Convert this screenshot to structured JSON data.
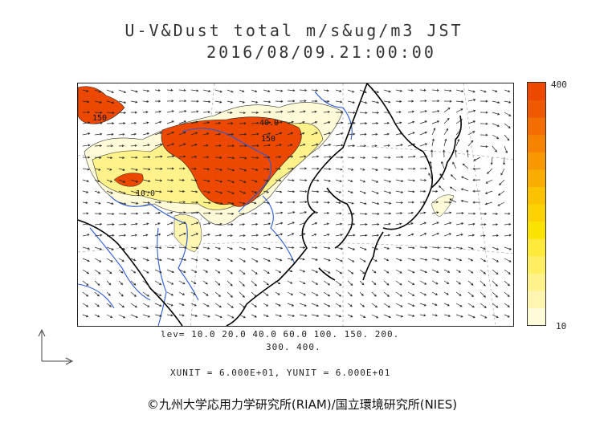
{
  "title": {
    "line1": "U-V&Dust total m/s&ug/m3 JST",
    "line2": "2016/08/09.21:00:00"
  },
  "colorbar": {
    "max_label": "400",
    "min_label": "10",
    "colors": [
      "#fffbd8",
      "#fff5b0",
      "#fff28a",
      "#ffee62",
      "#ffe93a",
      "#fbe300",
      "#fcd200",
      "#fbc200",
      "#f9ad00",
      "#f79800",
      "#f58300",
      "#f26e00",
      "#ef5a00",
      "#ec4800"
    ]
  },
  "contour_levels": {
    "line1": "lev= 10.0 20.0 40.0 60.0 100. 150. 200.",
    "line2": "300. 400."
  },
  "units_text": "XUNIT = 6.000E+01, YUNIT = 6.000E+01",
  "credit": "©九州大学応用力学研究所(RIAM)/国立環境研究所(NIES)",
  "map_labels": {
    "contour_150_left": "150",
    "contour_40_center": "40.0",
    "contour_150_center": "150",
    "contour_10_left": "10.0"
  },
  "colors": {
    "coast": "#000000",
    "river": "#2a5bd7",
    "grid": "#888888",
    "dust_high": "#ec4800",
    "dust_low": "#fff5b0"
  }
}
